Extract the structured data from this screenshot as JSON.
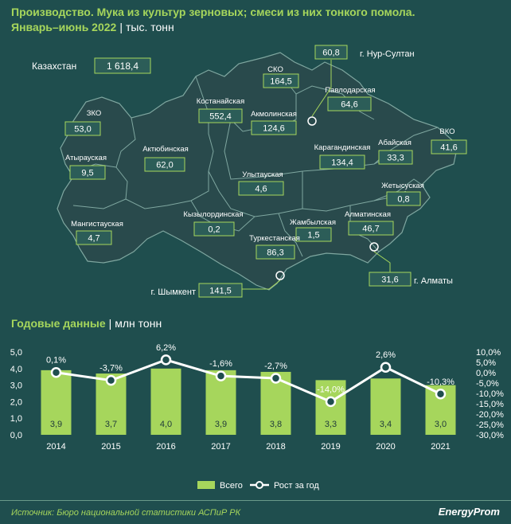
{
  "header": {
    "title_line1": "Производство. Мука из культур зерновых; смеси из них тонкого помола.",
    "title_line2": "Январь–июнь 2022",
    "unit": "тыс. тонн"
  },
  "map": {
    "total": {
      "label": "Казахстан",
      "value": "1 618,4"
    },
    "regions": [
      {
        "id": "zko",
        "label": "ЗКО",
        "value": "53,0"
      },
      {
        "id": "atyrau",
        "label": "Атырауская",
        "value": "9,5"
      },
      {
        "id": "mangistau",
        "label": "Мангистауская",
        "value": "4,7"
      },
      {
        "id": "aktobe",
        "label": "Актюбинская",
        "value": "62,0"
      },
      {
        "id": "kostanay",
        "label": "Костанайская",
        "value": "552,4"
      },
      {
        "id": "sko",
        "label": "СКО",
        "value": "164,5"
      },
      {
        "id": "akmola",
        "label": "Акмолинская",
        "value": "124,6"
      },
      {
        "id": "pavlodar",
        "label": "Павлодарская",
        "value": "64,6"
      },
      {
        "id": "karaganda",
        "label": "Карагандинская",
        "value": "134,4"
      },
      {
        "id": "abay",
        "label": "Абайская",
        "value": "33,3"
      },
      {
        "id": "vko",
        "label": "ВКО",
        "value": "41,6"
      },
      {
        "id": "ulytau",
        "label": "Улытауская",
        "value": "4,6"
      },
      {
        "id": "zhetysu",
        "label": "Жетысуская",
        "value": "0,8"
      },
      {
        "id": "kyzylorda",
        "label": "Кызылординская",
        "value": "0,2"
      },
      {
        "id": "zhambyl",
        "label": "Жамбылская",
        "value": "1,5"
      },
      {
        "id": "almaty_reg",
        "label": "Алматинская",
        "value": "46,7"
      },
      {
        "id": "turkestan",
        "label": "Туркестанская",
        "value": "86,3"
      }
    ],
    "cities": [
      {
        "id": "nursultan",
        "label": "г. Нур-Султан",
        "value": "60,8"
      },
      {
        "id": "almaty",
        "label": "г. Алматы",
        "value": "31,6"
      },
      {
        "id": "shymkent",
        "label": "г. Шымкент",
        "value": "141,5"
      }
    ]
  },
  "annual": {
    "title": "Годовые данные",
    "unit": "млн тонн"
  },
  "chart_data": {
    "type": "bar",
    "categories": [
      "2014",
      "2015",
      "2016",
      "2017",
      "2018",
      "2019",
      "2020",
      "2021"
    ],
    "series": [
      {
        "name": "Всего",
        "type": "bar",
        "axis": "left",
        "values": [
          3.9,
          3.7,
          4.0,
          3.9,
          3.8,
          3.3,
          3.4,
          3.0
        ],
        "labels": [
          "3,9",
          "3,7",
          "4,0",
          "3,9",
          "3,8",
          "3,3",
          "3,4",
          "3,0"
        ]
      },
      {
        "name": "Рост за год",
        "type": "line",
        "axis": "right",
        "values": [
          0.1,
          -3.7,
          6.2,
          -1.6,
          -2.7,
          -14.0,
          2.6,
          -10.3
        ],
        "labels": [
          "0,1%",
          "-3,7%",
          "6,2%",
          "-1,6%",
          "-2,7%",
          "-14,0%",
          "2,6%",
          "-10,3%"
        ]
      }
    ],
    "y_left": {
      "ylim": [
        0,
        5
      ],
      "ticks": [
        "0,0",
        "1,0",
        "2,0",
        "3,0",
        "4,0",
        "5,0"
      ]
    },
    "y_right": {
      "ylim": [
        -30,
        10
      ],
      "ticks": [
        "10,0%",
        "5,0%",
        "0,0%",
        "-5,0%",
        "-10,0%",
        "-15,0%",
        "-20,0%",
        "-25,0%",
        "-30,0%"
      ]
    },
    "legend": "bottom-center",
    "grid": false,
    "colors": {
      "bar": "#a6d65c",
      "line": "#ffffff",
      "background": "#1f4e4e"
    }
  },
  "footer": {
    "source": "Источник: Бюро национальной статистики АСПиР РК",
    "brand": "EnergyProm"
  }
}
